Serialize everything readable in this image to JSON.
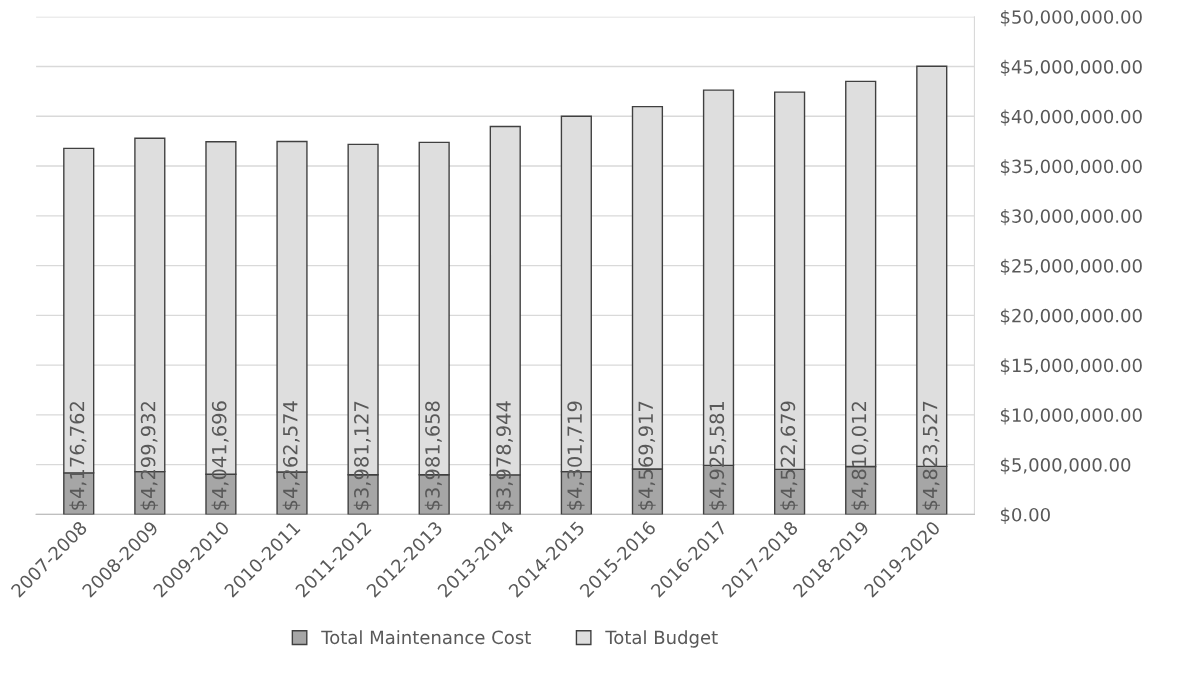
{
  "chart_data": {
    "type": "bar",
    "stacked": true,
    "categories": [
      "2007-2008",
      "2008-2009",
      "2009-2010",
      "2010-2011",
      "2011-2012",
      "2012-2013",
      "2013-2014",
      "2014-2015",
      "2015-2016",
      "2016-2017",
      "2017-2018",
      "2018-2019",
      "2019-2020"
    ],
    "series": [
      {
        "name": "Total Maintenance Cost",
        "color": "#a6a6a6",
        "values": [
          4176762,
          4299932,
          4041696,
          4262574,
          3981127,
          3981658,
          3978944,
          4301719,
          4569917,
          4925581,
          4522679,
          4810012,
          4823527
        ],
        "value_labels": [
          "$4,176,762",
          "$4,299,932",
          "$4,041,696",
          "$4,262,574",
          "$3,981,127",
          "$3,981,658",
          "$3,978,944",
          "$4,301,719",
          "$4,569,917",
          "$4,925,581",
          "$4,522,679",
          "$4,810,012",
          "$4,823,527"
        ]
      },
      {
        "name": "Total Budget",
        "color": "#dedede",
        "values": [
          32600000,
          33500000,
          33400000,
          33200000,
          33200000,
          33400000,
          35000000,
          35700000,
          36400000,
          37700000,
          37900000,
          38700000,
          40200000
        ]
      }
    ],
    "ylim": [
      0,
      50000000
    ],
    "yticks": [
      {
        "value": 0,
        "label": "$0.00"
      },
      {
        "value": 5000000,
        "label": "$5,000,000.00"
      },
      {
        "value": 10000000,
        "label": "$10,000,000.00"
      },
      {
        "value": 15000000,
        "label": "$15,000,000.00"
      },
      {
        "value": 20000000,
        "label": "$20,000,000.00"
      },
      {
        "value": 25000000,
        "label": "$25,000,000.00"
      },
      {
        "value": 30000000,
        "label": "$30,000,000.00"
      },
      {
        "value": 35000000,
        "label": "$35,000,000.00"
      },
      {
        "value": 40000000,
        "label": "$40,000,000.00"
      },
      {
        "value": 45000000,
        "label": "$45,000,000.00"
      },
      {
        "value": 50000000,
        "label": "$50,000,000.00"
      }
    ],
    "grid": "y",
    "legend": "bottom"
  }
}
